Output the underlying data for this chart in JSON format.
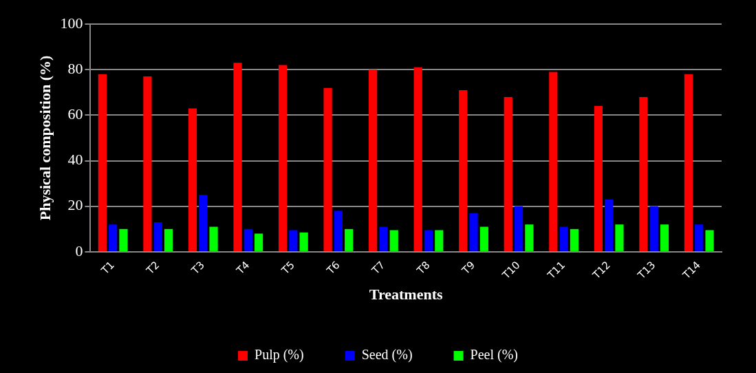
{
  "chart_data": {
    "type": "bar",
    "xlabel": "Treatments",
    "ylabel": "Physical composition (%)",
    "categories": [
      "T1",
      "T2",
      "T3",
      "T4",
      "T5",
      "T6",
      "T7",
      "T8",
      "T9",
      "T10",
      "T11",
      "T12",
      "T13",
      "T14"
    ],
    "series": [
      {
        "name": "Pulp (%)",
        "color": "#ff0000",
        "values": [
          78,
          77,
          63,
          83,
          82,
          72,
          80,
          81,
          71,
          68,
          79,
          64,
          68,
          78
        ]
      },
      {
        "name": "Seed (%)",
        "color": "#0000ff",
        "values": [
          12,
          13,
          25,
          10,
          9.5,
          18,
          11,
          9.5,
          17,
          20,
          11,
          23,
          20,
          12
        ]
      },
      {
        "name": "Peel (%)",
        "color": "#00ff00",
        "values": [
          10,
          10,
          11,
          8,
          8.5,
          10,
          9.5,
          9.5,
          11,
          12,
          10,
          12,
          12,
          9.5
        ]
      }
    ],
    "ylim": [
      0,
      100
    ],
    "yticks": [
      0,
      20,
      40,
      60,
      80,
      100
    ],
    "grid": "y",
    "legend": "bottom"
  }
}
